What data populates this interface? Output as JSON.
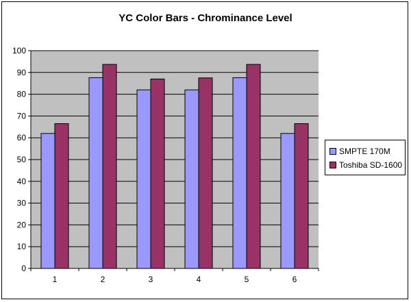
{
  "chart_data": {
    "type": "bar",
    "title": "YC Color Bars - Chrominance Level",
    "xlabel": "",
    "ylabel": "",
    "categories": [
      "1",
      "2",
      "3",
      "4",
      "5",
      "6"
    ],
    "ylim": [
      0,
      100
    ],
    "yticks": [
      0,
      10,
      20,
      30,
      40,
      50,
      60,
      70,
      80,
      90,
      100
    ],
    "grid": true,
    "plot_background": "#c0c0c0",
    "legend_position": "right",
    "series": [
      {
        "name": "SMPTE 170M",
        "color": "#9999ff",
        "values": [
          62,
          87.6,
          82,
          82,
          87.6,
          62
        ]
      },
      {
        "name": "Toshiba SD-1600",
        "color": "#993366",
        "values": [
          66.5,
          93.7,
          87,
          87.5,
          93.7,
          66.5
        ]
      }
    ]
  }
}
